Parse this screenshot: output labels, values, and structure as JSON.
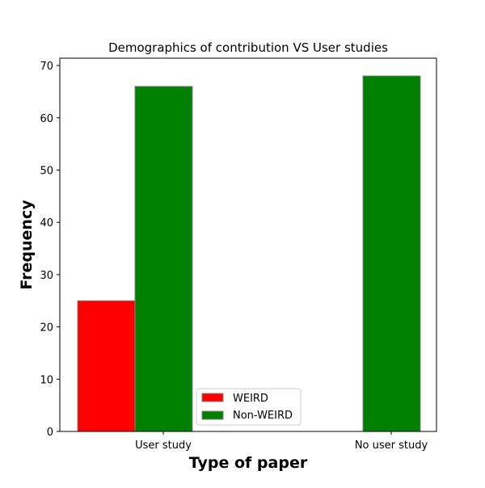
{
  "chart_data": {
    "type": "bar",
    "title": "Demographics of contribution VS User studies",
    "xlabel": "Type of paper",
    "ylabel": "Frequency",
    "categories": [
      "User study",
      "No user study"
    ],
    "series": [
      {
        "name": "WEIRD",
        "values": [
          25,
          0
        ],
        "color": "#ff0000"
      },
      {
        "name": "Non-WEIRD",
        "values": [
          66,
          68
        ],
        "color": "#008000"
      }
    ],
    "ylim": [
      0,
      71.4
    ],
    "yticks": [
      0,
      10,
      20,
      30,
      40,
      50,
      60,
      70
    ],
    "legend": "lower-center",
    "grid": false,
    "bar_edge_color": "#808080"
  }
}
